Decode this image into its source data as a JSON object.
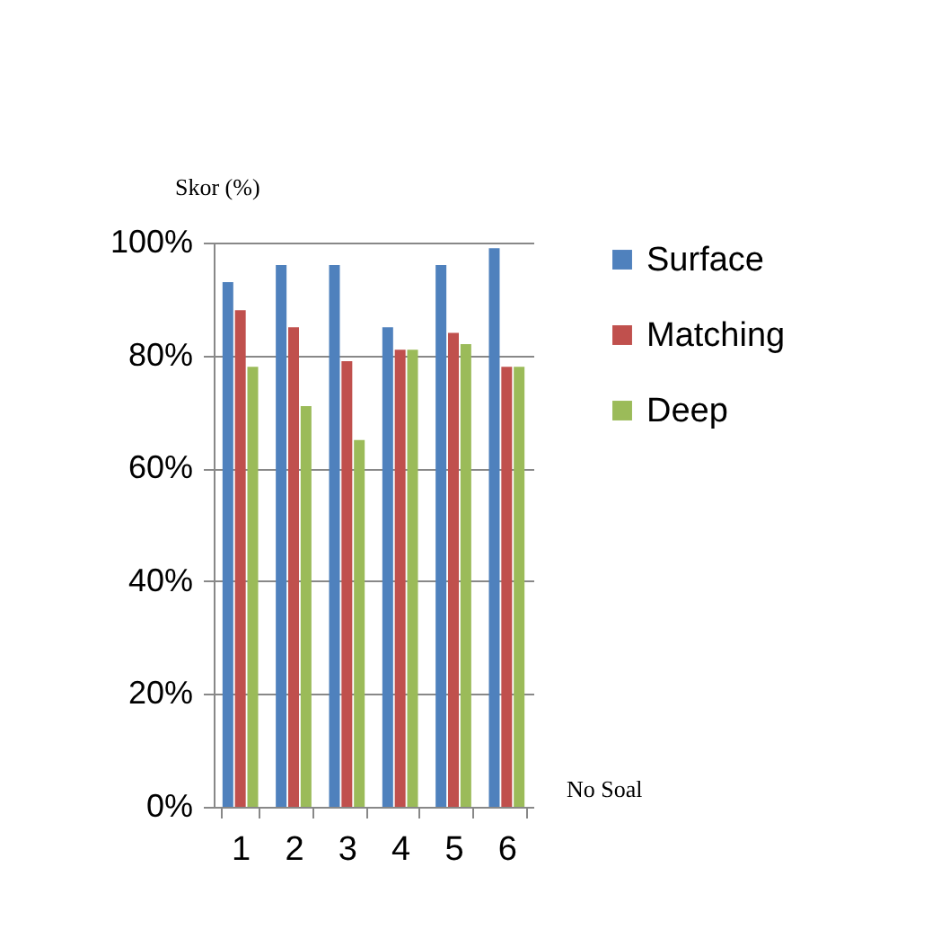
{
  "chart_data": {
    "type": "bar",
    "xlabel": "No Soal",
    "ylabel": "Skor (%)",
    "categories": [
      "1",
      "2",
      "3",
      "4",
      "5",
      "6"
    ],
    "series": [
      {
        "name": "Surface",
        "color": "#4f81bd",
        "values": [
          93,
          96,
          96,
          85,
          96,
          99
        ]
      },
      {
        "name": "Matching",
        "color": "#c0504d",
        "values": [
          88,
          85,
          79,
          81,
          84,
          78
        ]
      },
      {
        "name": "Deep",
        "color": "#9bbb59",
        "values": [
          78,
          71,
          65,
          81,
          82,
          78
        ]
      }
    ],
    "ylim": [
      0,
      100
    ],
    "yticks": [
      {
        "value": 0,
        "label": "0%"
      },
      {
        "value": 20,
        "label": "20%"
      },
      {
        "value": 40,
        "label": "40%"
      },
      {
        "value": 60,
        "label": "60%"
      },
      {
        "value": 80,
        "label": "80%"
      },
      {
        "value": 100,
        "label": "100%"
      }
    ],
    "grid": "y",
    "legend": "right"
  }
}
